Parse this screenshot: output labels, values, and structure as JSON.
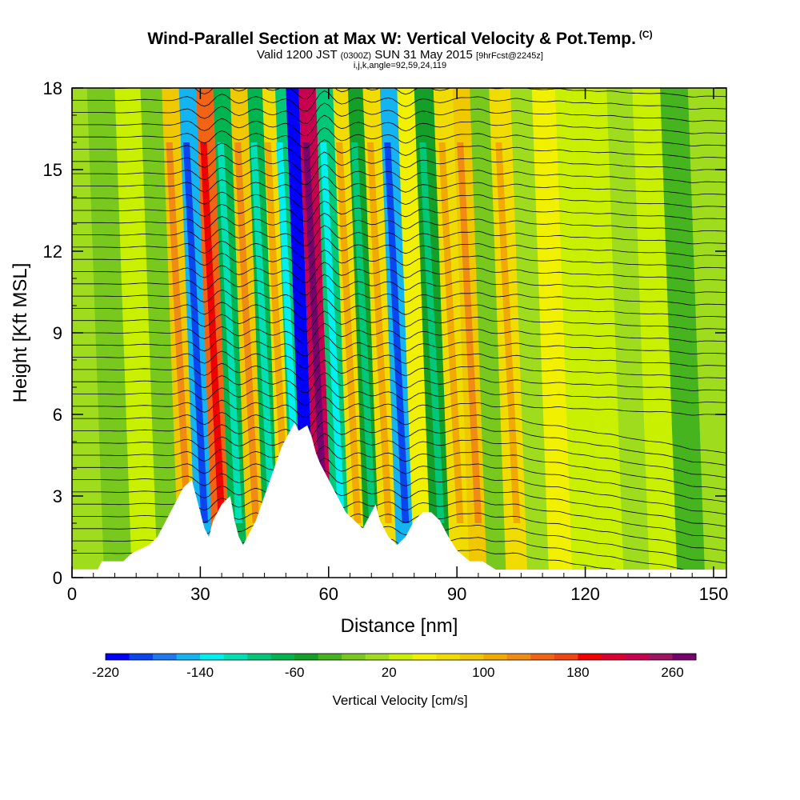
{
  "header": {
    "title": "Wind-Parallel Section at Max W: Vertical Velocity & Pot.Temp.",
    "title_tag": "(C)",
    "valid_prefix": "Valid 1200 JST",
    "valid_utc": "(0300Z)",
    "valid_date": "SUN 31 May 2015",
    "forecast": "[9hrFcst@2245z]",
    "indices": "i,j,k,angle=92,59,24,119"
  },
  "chart_data": {
    "type": "heatmap",
    "xlabel": "Distance [nm]",
    "ylabel": "Height [Kft MSL]",
    "xlim": [
      0,
      153
    ],
    "ylim": [
      0,
      18
    ],
    "x_ticks": [
      "0",
      "30",
      "60",
      "90",
      "120",
      "150"
    ],
    "y_ticks": [
      "0",
      "3",
      "6",
      "9",
      "12",
      "15",
      "18"
    ],
    "grid": false,
    "colorbar": {
      "label": "Vertical Velocity [cm/s]",
      "tick_labels": [
        "-220",
        "-140",
        "-60",
        "20",
        "100",
        "180",
        "260"
      ],
      "levels": [
        -220,
        -200,
        -180,
        -160,
        -140,
        -120,
        -100,
        -80,
        -60,
        -40,
        -20,
        0,
        20,
        40,
        60,
        80,
        100,
        120,
        140,
        160,
        180,
        200,
        220,
        240,
        260,
        280
      ],
      "colors": [
        "#0000ff",
        "#0a46f0",
        "#1e78f0",
        "#14b4f0",
        "#00f0f0",
        "#00e0b4",
        "#00c878",
        "#00b450",
        "#14a028",
        "#46b41e",
        "#78c81e",
        "#a0dc1e",
        "#c8f000",
        "#f0f000",
        "#f0dc00",
        "#f0c800",
        "#f0aa00",
        "#f08c14",
        "#f06414",
        "#f04614",
        "#f00000",
        "#dc0032",
        "#c80050",
        "#a01464",
        "#78006e"
      ]
    },
    "terrain_kft": [
      [
        0,
        0.3
      ],
      [
        6,
        0.3
      ],
      [
        7,
        0.6
      ],
      [
        12,
        0.6
      ],
      [
        14,
        0.9
      ],
      [
        18,
        1.2
      ],
      [
        20,
        1.5
      ],
      [
        22,
        2.1
      ],
      [
        24,
        2.7
      ],
      [
        26,
        3.3
      ],
      [
        28,
        3.6
      ],
      [
        30,
        2.4
      ],
      [
        31,
        1.8
      ],
      [
        32,
        1.5
      ],
      [
        33,
        2.1
      ],
      [
        35,
        2.7
      ],
      [
        37,
        3.0
      ],
      [
        38,
        2.1
      ],
      [
        39,
        1.5
      ],
      [
        40,
        1.2
      ],
      [
        41,
        1.5
      ],
      [
        43,
        2.1
      ],
      [
        45,
        3.0
      ],
      [
        47,
        3.9
      ],
      [
        49,
        4.8
      ],
      [
        51,
        5.4
      ],
      [
        52,
        5.7
      ],
      [
        53,
        5.4
      ],
      [
        55,
        5.6
      ],
      [
        56,
        5.2
      ],
      [
        57,
        4.6
      ],
      [
        58,
        4.2
      ],
      [
        59,
        3.9
      ],
      [
        60,
        3.6
      ],
      [
        62,
        3.0
      ],
      [
        64,
        2.4
      ],
      [
        66,
        2.1
      ],
      [
        68,
        1.8
      ],
      [
        69,
        2.1
      ],
      [
        71,
        2.7
      ],
      [
        72,
        2.1
      ],
      [
        74,
        1.5
      ],
      [
        76,
        1.2
      ],
      [
        78,
        1.5
      ],
      [
        80,
        2.1
      ],
      [
        82,
        2.4
      ],
      [
        84,
        2.4
      ],
      [
        86,
        2.1
      ],
      [
        88,
        1.5
      ],
      [
        90,
        1.0
      ],
      [
        93,
        0.6
      ],
      [
        96,
        0.6
      ],
      [
        99,
        0.3
      ],
      [
        100,
        0.0
      ],
      [
        153,
        0.0
      ]
    ],
    "velocity_bands": [
      {
        "x": 4,
        "v": 0
      },
      {
        "x": 11,
        "v": -10
      },
      {
        "x": 17,
        "v": 20
      },
      {
        "x": 23,
        "v": -10
      },
      {
        "x": 27,
        "v": 90
      },
      {
        "x": 31,
        "v": -150
      },
      {
        "x": 35,
        "v": 150
      },
      {
        "x": 39,
        "v": -80
      },
      {
        "x": 43,
        "v": 90
      },
      {
        "x": 47,
        "v": -70
      },
      {
        "x": 50,
        "v": 60
      },
      {
        "x": 53,
        "v": -90
      },
      {
        "x": 55,
        "v": -220
      },
      {
        "x": 59,
        "v": 230
      },
      {
        "x": 63,
        "v": -100
      },
      {
        "x": 67,
        "v": 70
      },
      {
        "x": 70,
        "v": -60
      },
      {
        "x": 74,
        "v": 60
      },
      {
        "x": 78,
        "v": -150
      },
      {
        "x": 82,
        "v": 40
      },
      {
        "x": 86,
        "v": -60
      },
      {
        "x": 91,
        "v": 60
      },
      {
        "x": 95,
        "v": 80
      },
      {
        "x": 99,
        "v": -20
      },
      {
        "x": 104,
        "v": 60
      },
      {
        "x": 109,
        "v": 0
      },
      {
        "x": 114,
        "v": 40
      },
      {
        "x": 120,
        "v": 20
      },
      {
        "x": 126,
        "v": 30
      },
      {
        "x": 132,
        "v": 0
      },
      {
        "x": 138,
        "v": 20
      },
      {
        "x": 145,
        "v": -40
      },
      {
        "x": 151,
        "v": 0
      }
    ]
  }
}
